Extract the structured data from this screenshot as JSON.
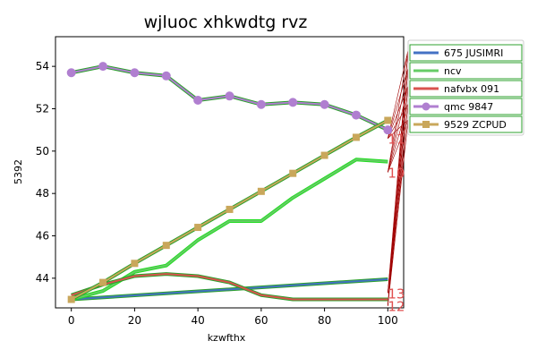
{
  "chart_data": {
    "type": "line",
    "title": "wjluoc xhkwdtg rvz",
    "xlabel": "kzwfthx",
    "ylabel": "5392",
    "xlim": [
      -5,
      105
    ],
    "ylim": [
      42.6,
      55.4
    ],
    "xticks": [
      0,
      20,
      40,
      60,
      80,
      100
    ],
    "yticks": [
      44,
      46,
      48,
      50,
      52,
      54
    ],
    "grid": false,
    "legend_position": "right",
    "series": [
      {
        "name": "675 JUSIMRI",
        "color": "#4472c4",
        "edge_color": "#2ca02c",
        "marker": "none",
        "x": [
          0,
          100
        ],
        "values": [
          43.0,
          43.95
        ]
      },
      {
        "name": "ncv",
        "color": "#66cc66",
        "edge_color": "#22dd22",
        "marker": "none",
        "x": [
          0,
          10,
          20,
          30,
          40,
          50,
          60,
          70,
          80,
          90,
          100
        ],
        "values": [
          43.0,
          43.4,
          44.3,
          44.6,
          45.8,
          46.7,
          46.7,
          47.8,
          48.7,
          49.6,
          49.5
        ]
      },
      {
        "name": "nafvbx 091",
        "color": "#d9534f",
        "edge_color": "#2ca02c",
        "marker": "none",
        "x": [
          0,
          10,
          20,
          30,
          40,
          50,
          60,
          70,
          80,
          90,
          100
        ],
        "values": [
          43.2,
          43.7,
          44.1,
          44.2,
          44.1,
          43.8,
          43.2,
          43.0,
          43.0,
          43.0,
          43.0
        ]
      },
      {
        "name": "qmc 9847",
        "color": "#b07fd0",
        "edge_color": "#2ca02c",
        "marker": "circle",
        "x": [
          0,
          10,
          20,
          30,
          40,
          50,
          60,
          70,
          80,
          90,
          100
        ],
        "values": [
          53.7,
          54.0,
          53.7,
          53.55,
          52.4,
          52.6,
          52.2,
          52.3,
          52.2,
          51.7,
          51.0
        ]
      },
      {
        "name": "9529 ZCPUD",
        "color": "#c9a75b",
        "edge_color": "#2ca02c",
        "marker": "square",
        "x": [
          0,
          10,
          20,
          30,
          40,
          50,
          60,
          70,
          80,
          90,
          100
        ],
        "values": [
          43.0,
          43.8,
          44.7,
          45.55,
          46.4,
          47.25,
          48.1,
          48.95,
          49.8,
          50.65,
          51.45
        ]
      }
    ],
    "annotations": [
      {
        "text": "11",
        "x": 100,
        "y": 50.6
      },
      {
        "text": "10",
        "x": 100,
        "y": 49.0
      },
      {
        "text": "13",
        "x": 100,
        "y": 43.3
      },
      {
        "text": "12",
        "x": 100,
        "y": 42.7
      }
    ]
  }
}
